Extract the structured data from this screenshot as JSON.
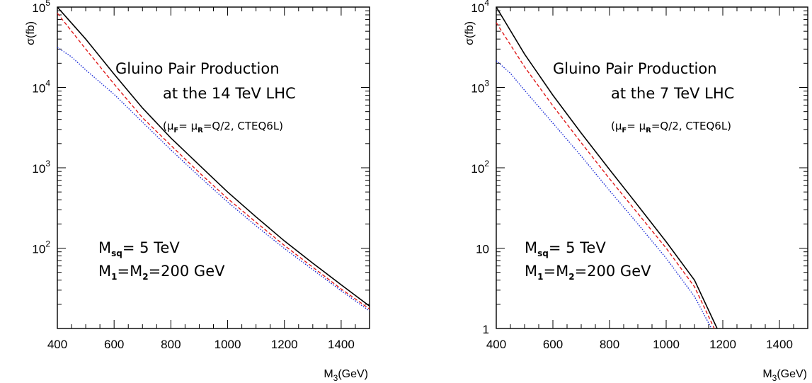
{
  "chart_data": [
    {
      "type": "line",
      "panel": "left",
      "xlabel": "M_3(GeV)",
      "ylabel": "σ(fb)",
      "xlim": [
        400,
        1500
      ],
      "ylim": [
        10,
        100000
      ],
      "yscale": "log",
      "grid": false,
      "x_ticks": [
        400,
        600,
        800,
        1000,
        1200,
        1400
      ],
      "y_ticks": [
        {
          "value": 100,
          "base": "10",
          "exp": "2"
        },
        {
          "value": 1000,
          "base": "10",
          "exp": "3"
        },
        {
          "value": 10000,
          "base": "10",
          "exp": "4"
        },
        {
          "value": 100000,
          "base": "10",
          "exp": "5"
        }
      ],
      "annotations": {
        "title_line1": "Gluino Pair Production",
        "title_line2": "at the 14 TeV LHC",
        "scale_mu": "μ",
        "scale_f": "F",
        "scale_eq1": "= ",
        "scale_r": "R",
        "scale_rest": "=Q/2, CTEQ6L)",
        "msq_M": "M",
        "msq_sub": "sq",
        "msq_rest": "= 5 TeV",
        "m12_M": "M",
        "m12_sub1": "1",
        "m12_mid": "=M",
        "m12_sub2": "2",
        "m12_rest": "=200 GeV"
      },
      "series": [
        {
          "style": "solid",
          "color": "#000000",
          "x": [
            400,
            500,
            600,
            700,
            800,
            900,
            1000,
            1100,
            1200,
            1300,
            1400,
            1500
          ],
          "y": [
            100000,
            40000,
            14600,
            5540,
            2350,
            1080,
            500,
            245,
            123,
            65,
            35,
            19
          ]
        },
        {
          "style": "dashed",
          "color": "#e01a1a",
          "x": [
            400,
            500,
            600,
            700,
            800,
            900,
            1000,
            1100,
            1200,
            1300,
            1400,
            1500
          ],
          "y": [
            84000,
            30000,
            11000,
            4200,
            1900,
            870,
            415,
            210,
            108,
            58,
            31,
            17.5
          ]
        },
        {
          "style": "dotted",
          "color": "#1a2bd6",
          "x": [
            400,
            450,
            500,
            600,
            700,
            800,
            900,
            1000,
            1100,
            1200,
            1300,
            1400,
            1500
          ],
          "y": [
            31500,
            24000,
            16500,
            8200,
            3700,
            1670,
            780,
            375,
            190,
            99,
            54,
            29.5,
            16.5
          ]
        }
      ]
    },
    {
      "type": "line",
      "panel": "right",
      "xlabel": "M_3(GeV)",
      "ylabel": "σ(fb)",
      "xlim": [
        400,
        1500
      ],
      "ylim": [
        1,
        10000
      ],
      "yscale": "log",
      "grid": false,
      "x_ticks": [
        400,
        600,
        800,
        1000,
        1200,
        1400
      ],
      "y_ticks": [
        {
          "value": 1,
          "base": "1",
          "exp": ""
        },
        {
          "value": 10,
          "base": "10",
          "exp": ""
        },
        {
          "value": 100,
          "base": "10",
          "exp": "2"
        },
        {
          "value": 1000,
          "base": "10",
          "exp": "3"
        },
        {
          "value": 10000,
          "base": "10",
          "exp": "4"
        }
      ],
      "annotations": {
        "title_line1": "Gluino Pair Production",
        "title_line2": "at the 7 TeV LHC",
        "scale_mu": "μ",
        "scale_f": "F",
        "scale_eq1": "= ",
        "scale_r": "R",
        "scale_rest": "=Q/2, CTEQ6L)",
        "msq_M": "M",
        "msq_sub": "sq",
        "msq_rest": "= 5 TeV",
        "m12_M": "M",
        "m12_sub1": "1",
        "m12_mid": "=M",
        "m12_sub2": "2",
        "m12_rest": "=200 GeV"
      },
      "series": [
        {
          "style": "solid",
          "color": "#000000",
          "x": [
            400,
            500,
            600,
            700,
            800,
            900,
            1000,
            1100,
            1180
          ],
          "y": [
            10000,
            2600,
            800,
            270,
            95,
            34,
            12,
            4,
            1
          ]
        },
        {
          "style": "dashed",
          "color": "#e01a1a",
          "x": [
            400,
            500,
            600,
            700,
            800,
            900,
            1000,
            1100,
            1170
          ],
          "y": [
            6400,
            1800,
            590,
            205,
            73,
            27,
            10,
            3.3,
            1
          ]
        },
        {
          "style": "dotted",
          "color": "#1a2bd6",
          "x": [
            400,
            450,
            500,
            600,
            700,
            800,
            900,
            1000,
            1100,
            1160
          ],
          "y": [
            2150,
            1500,
            920,
            360,
            140,
            52,
            20,
            7.5,
            2.5,
            1
          ]
        }
      ]
    }
  ]
}
